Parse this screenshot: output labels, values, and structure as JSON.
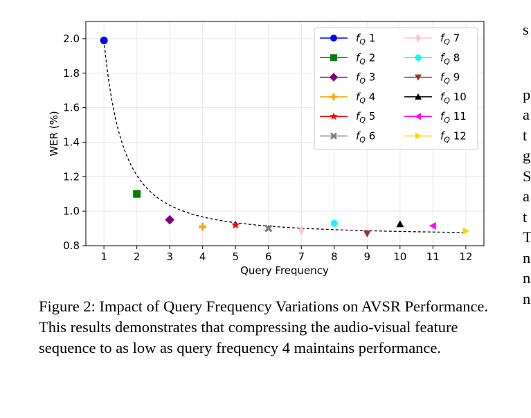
{
  "chart_data": {
    "type": "scatter",
    "xlabel": "Query Frequency",
    "ylabel": "WER (%)",
    "xlim": [
      0.45,
      12.55
    ],
    "ylim": [
      0.8,
      2.1
    ],
    "xticks": [
      1,
      2,
      3,
      4,
      5,
      6,
      7,
      8,
      9,
      10,
      11,
      12
    ],
    "yticks": [
      0.8,
      1.0,
      1.2,
      1.4,
      1.6,
      1.8,
      2.0
    ],
    "ytick_labels": [
      "0.8",
      "1.0",
      "1.2",
      "1.4",
      "1.6",
      "1.8",
      "2.0"
    ],
    "grid": true,
    "legend_placement": "top-right",
    "series": [
      {
        "name_sub": "Q",
        "name_num": "1",
        "x": 1,
        "y": 1.99,
        "color": "#0000ff",
        "marker": "circle"
      },
      {
        "name_sub": "Q",
        "name_num": "2",
        "x": 2,
        "y": 1.1,
        "color": "#008000",
        "marker": "square"
      },
      {
        "name_sub": "Q",
        "name_num": "3",
        "x": 3,
        "y": 0.95,
        "color": "#800080",
        "marker": "diamond"
      },
      {
        "name_sub": "Q",
        "name_num": "4",
        "x": 4,
        "y": 0.91,
        "color": "#ffa500",
        "marker": "plus"
      },
      {
        "name_sub": "Q",
        "name_num": "5",
        "x": 5,
        "y": 0.92,
        "color": "#ff0000",
        "marker": "star"
      },
      {
        "name_sub": "Q",
        "name_num": "6",
        "x": 6,
        "y": 0.9,
        "color": "#808080",
        "marker": "x"
      },
      {
        "name_sub": "Q",
        "name_num": "7",
        "x": 7,
        "y": 0.89,
        "color": "#ffc0cb",
        "marker": "thin_diamond"
      },
      {
        "name_sub": "Q",
        "name_num": "8",
        "x": 8,
        "y": 0.93,
        "color": "#00ffff",
        "marker": "hexagon"
      },
      {
        "name_sub": "Q",
        "name_num": "9",
        "x": 9,
        "y": 0.87,
        "color": "#a52a2a",
        "marker": "triangle_down"
      },
      {
        "name_sub": "Q",
        "name_num": "10",
        "x": 10,
        "y": 0.925,
        "color": "#000000",
        "marker": "triangle_up"
      },
      {
        "name_sub": "Q",
        "name_num": "11",
        "x": 11,
        "y": 0.915,
        "color": "#ff00ff",
        "marker": "triangle_left"
      },
      {
        "name_sub": "Q",
        "name_num": "12",
        "x": 12,
        "y": 0.885,
        "color": "#ffd700",
        "marker": "triangle_right"
      }
    ],
    "fit_curve": {
      "style": "dashed",
      "color": "#000000",
      "a": 0.86,
      "b": 1.13,
      "p": 1.7
    }
  },
  "caption": {
    "text": "Figure 2: Impact of Query Frequency Variations on AVSR Performance. This results demonstrates that compressing the audio-visual feature sequence to as low as query frequency 4 maintains performance."
  },
  "right_column": {
    "top": "s",
    "lines": [
      "p",
      "a",
      "t",
      "g",
      "S",
      "a",
      "t",
      "T",
      "n",
      "n",
      "n"
    ]
  }
}
